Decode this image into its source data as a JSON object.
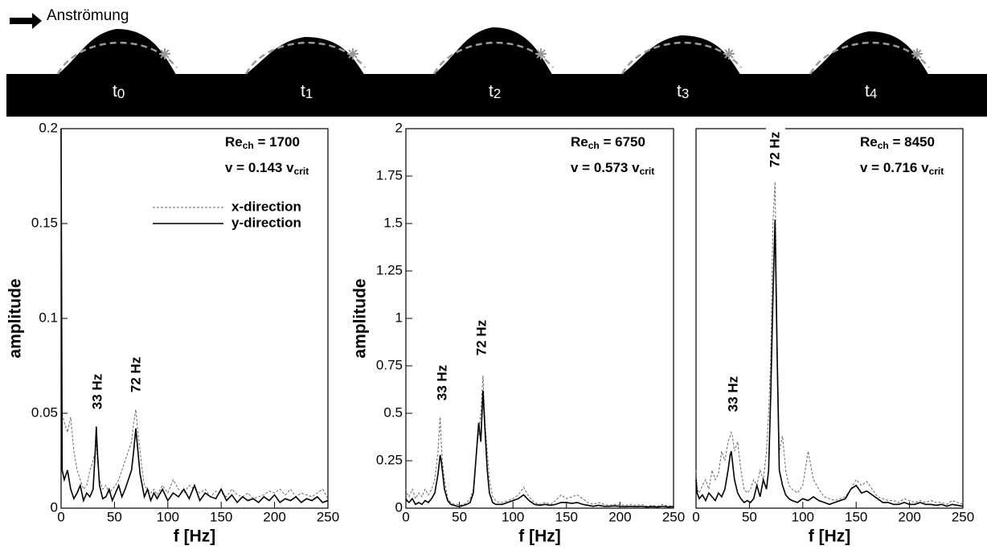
{
  "strip": {
    "flow_label": "Anströmung",
    "frames": [
      {
        "base": "t",
        "sub": "0"
      },
      {
        "base": "t",
        "sub": "1"
      },
      {
        "base": "t",
        "sub": "2"
      },
      {
        "base": "t",
        "sub": "3"
      },
      {
        "base": "t",
        "sub": "4"
      }
    ]
  },
  "chart_data": [
    {
      "type": "line",
      "xlabel": "f [Hz]",
      "ylabel": "amplitude",
      "re_label": {
        "base": "Re",
        "sub": "ch",
        "value": " = 1700"
      },
      "velocity_label": {
        "base": "v = 0.143 v",
        "sub": "crit"
      },
      "annotations": [
        "33 Hz",
        "72 Hz"
      ],
      "legend": true,
      "xlim": [
        0,
        250
      ],
      "xticks": [
        0,
        50,
        100,
        150,
        200,
        250
      ],
      "ylim": [
        0,
        0.2
      ],
      "yticks": [
        0,
        0.05,
        0.1,
        0.15,
        0.2
      ],
      "x": [
        0,
        1,
        3,
        6,
        9,
        12,
        15,
        18,
        21,
        24,
        27,
        30,
        32,
        33,
        34,
        36,
        39,
        42,
        45,
        48,
        51,
        54,
        57,
        60,
        63,
        66,
        68,
        70,
        72,
        74,
        76,
        78,
        81,
        84,
        87,
        90,
        95,
        100,
        105,
        110,
        115,
        120,
        125,
        130,
        135,
        140,
        145,
        150,
        155,
        160,
        165,
        170,
        175,
        180,
        185,
        190,
        195,
        200,
        205,
        210,
        215,
        220,
        225,
        230,
        235,
        240,
        245,
        250
      ],
      "series": [
        {
          "name": "x-direction",
          "color": "#666666",
          "dashed": true,
          "values": [
            0.2,
            0.05,
            0.045,
            0.04,
            0.048,
            0.03,
            0.02,
            0.015,
            0.01,
            0.012,
            0.02,
            0.025,
            0.03,
            0.035,
            0.025,
            0.015,
            0.01,
            0.012,
            0.008,
            0.01,
            0.012,
            0.015,
            0.02,
            0.025,
            0.03,
            0.035,
            0.045,
            0.052,
            0.04,
            0.03,
            0.02,
            0.012,
            0.01,
            0.008,
            0.01,
            0.007,
            0.012,
            0.008,
            0.015,
            0.01,
            0.008,
            0.012,
            0.01,
            0.008,
            0.01,
            0.006,
            0.009,
            0.008,
            0.006,
            0.01,
            0.007,
            0.006,
            0.008,
            0.005,
            0.006,
            0.007,
            0.009,
            0.008,
            0.01,
            0.007,
            0.01,
            0.006,
            0.008,
            0.007,
            0.006,
            0.008,
            0.01,
            0.005
          ]
        },
        {
          "name": "y-direction",
          "color": "#000000",
          "dashed": false,
          "values": [
            0.2,
            0.02,
            0.015,
            0.02,
            0.01,
            0.005,
            0.008,
            0.012,
            0.004,
            0.008,
            0.006,
            0.01,
            0.03,
            0.043,
            0.03,
            0.012,
            0.005,
            0.006,
            0.01,
            0.004,
            0.008,
            0.012,
            0.006,
            0.01,
            0.015,
            0.02,
            0.03,
            0.042,
            0.03,
            0.018,
            0.012,
            0.006,
            0.01,
            0.004,
            0.008,
            0.005,
            0.01,
            0.004,
            0.008,
            0.006,
            0.01,
            0.005,
            0.012,
            0.004,
            0.008,
            0.006,
            0.005,
            0.01,
            0.004,
            0.007,
            0.003,
            0.006,
            0.004,
            0.005,
            0.003,
            0.006,
            0.004,
            0.007,
            0.003,
            0.005,
            0.004,
            0.006,
            0.003,
            0.005,
            0.004,
            0.006,
            0.003,
            0.004
          ]
        }
      ]
    },
    {
      "type": "line",
      "xlabel": "f [Hz]",
      "ylabel": "amplitude",
      "re_label": {
        "base": "Re",
        "sub": "ch",
        "value": " = 6750"
      },
      "velocity_label": {
        "base": "v = 0.573 v",
        "sub": "crit"
      },
      "annotations": [
        "33 Hz",
        "72 Hz"
      ],
      "legend": false,
      "xlim": [
        0,
        250
      ],
      "xticks": [
        0,
        50,
        100,
        150,
        200,
        250
      ],
      "ylim": [
        0,
        2
      ],
      "yticks": [
        0,
        0.25,
        0.5,
        0.75,
        1,
        1.25,
        1.5,
        1.75,
        2
      ],
      "x": [
        0,
        1,
        3,
        6,
        9,
        12,
        15,
        18,
        21,
        24,
        27,
        30,
        32,
        33,
        34,
        36,
        39,
        42,
        45,
        48,
        51,
        54,
        57,
        60,
        63,
        66,
        68,
        70,
        72,
        74,
        76,
        78,
        81,
        84,
        87,
        90,
        95,
        100,
        105,
        110,
        115,
        120,
        125,
        130,
        135,
        140,
        145,
        150,
        155,
        160,
        165,
        170,
        175,
        180,
        185,
        190,
        195,
        200,
        205,
        210,
        215,
        220,
        225,
        230,
        235,
        240,
        245,
        250
      ],
      "series": [
        {
          "color": "#666666",
          "dashed": true,
          "values": [
            0.1,
            0.08,
            0.06,
            0.1,
            0.05,
            0.08,
            0.06,
            0.1,
            0.07,
            0.1,
            0.15,
            0.3,
            0.48,
            0.35,
            0.25,
            0.15,
            0.05,
            0.03,
            0.02,
            0.02,
            0.015,
            0.02,
            0.03,
            0.05,
            0.1,
            0.3,
            0.4,
            0.5,
            0.7,
            0.45,
            0.3,
            0.15,
            0.06,
            0.04,
            0.03,
            0.03,
            0.04,
            0.05,
            0.07,
            0.11,
            0.06,
            0.03,
            0.02,
            0.03,
            0.02,
            0.04,
            0.07,
            0.05,
            0.06,
            0.07,
            0.05,
            0.03,
            0.02,
            0.03,
            0.02,
            0.015,
            0.02,
            0.02,
            0.015,
            0.02,
            0.015,
            0.02,
            0.01,
            0.015,
            0.01,
            0.02,
            0.01,
            0.015
          ]
        },
        {
          "color": "#000000",
          "dashed": false,
          "values": [
            0.05,
            0.04,
            0.03,
            0.05,
            0.02,
            0.03,
            0.02,
            0.04,
            0.03,
            0.05,
            0.08,
            0.18,
            0.28,
            0.25,
            0.2,
            0.1,
            0.04,
            0.02,
            0.015,
            0.01,
            0.01,
            0.015,
            0.02,
            0.03,
            0.08,
            0.3,
            0.45,
            0.35,
            0.62,
            0.4,
            0.2,
            0.08,
            0.03,
            0.02,
            0.02,
            0.02,
            0.03,
            0.04,
            0.05,
            0.07,
            0.04,
            0.02,
            0.015,
            0.02,
            0.015,
            0.02,
            0.03,
            0.03,
            0.025,
            0.03,
            0.02,
            0.015,
            0.01,
            0.015,
            0.01,
            0.01,
            0.012,
            0.01,
            0.008,
            0.01,
            0.008,
            0.01,
            0.006,
            0.008,
            0.006,
            0.01,
            0.006,
            0.008
          ]
        }
      ]
    },
    {
      "type": "line",
      "xlabel": "f [Hz]",
      "re_label": {
        "base": "Re",
        "sub": "ch",
        "value": " = 8450"
      },
      "velocity_label": {
        "base": "v = 0.716 v",
        "sub": "crit"
      },
      "annotations": [
        "33 Hz",
        "72 Hz"
      ],
      "legend": false,
      "xlim": [
        0,
        250
      ],
      "xticks": [
        0,
        50,
        100,
        150,
        200,
        250
      ],
      "ylim": [
        0,
        2
      ],
      "x": [
        0,
        1,
        3,
        6,
        9,
        12,
        15,
        18,
        21,
        24,
        27,
        30,
        32,
        33,
        34,
        36,
        39,
        42,
        45,
        48,
        51,
        54,
        57,
        60,
        63,
        66,
        68,
        70,
        72,
        74,
        76,
        78,
        81,
        84,
        87,
        90,
        95,
        100,
        105,
        110,
        115,
        120,
        125,
        130,
        135,
        140,
        145,
        150,
        155,
        160,
        165,
        170,
        175,
        180,
        185,
        190,
        195,
        200,
        205,
        210,
        215,
        220,
        225,
        230,
        235,
        240,
        245,
        250
      ],
      "series": [
        {
          "color": "#666666",
          "dashed": true,
          "values": [
            0.2,
            0.1,
            0.08,
            0.12,
            0.15,
            0.1,
            0.2,
            0.15,
            0.18,
            0.3,
            0.25,
            0.35,
            0.38,
            0.4,
            0.38,
            0.3,
            0.35,
            0.2,
            0.1,
            0.08,
            0.1,
            0.15,
            0.12,
            0.2,
            0.15,
            0.3,
            0.5,
            0.8,
            1.5,
            1.72,
            0.9,
            0.3,
            0.38,
            0.2,
            0.12,
            0.1,
            0.08,
            0.12,
            0.3,
            0.15,
            0.1,
            0.06,
            0.05,
            0.04,
            0.05,
            0.06,
            0.1,
            0.15,
            0.12,
            0.14,
            0.1,
            0.06,
            0.05,
            0.04,
            0.04,
            0.03,
            0.05,
            0.04,
            0.03,
            0.04,
            0.03,
            0.04,
            0.03,
            0.03,
            0.02,
            0.04,
            0.03,
            0.02
          ]
        },
        {
          "color": "#000000",
          "dashed": false,
          "values": [
            0.15,
            0.08,
            0.05,
            0.07,
            0.04,
            0.08,
            0.06,
            0.04,
            0.08,
            0.06,
            0.1,
            0.2,
            0.28,
            0.3,
            0.25,
            0.15,
            0.08,
            0.05,
            0.03,
            0.04,
            0.03,
            0.05,
            0.12,
            0.06,
            0.15,
            0.1,
            0.2,
            0.6,
            1.1,
            1.52,
            0.8,
            0.2,
            0.12,
            0.07,
            0.05,
            0.04,
            0.03,
            0.05,
            0.04,
            0.06,
            0.04,
            0.03,
            0.02,
            0.03,
            0.04,
            0.05,
            0.1,
            0.12,
            0.08,
            0.09,
            0.07,
            0.05,
            0.03,
            0.03,
            0.02,
            0.02,
            0.03,
            0.02,
            0.02,
            0.03,
            0.02,
            0.02,
            0.015,
            0.02,
            0.01,
            0.02,
            0.015,
            0.01
          ]
        }
      ]
    }
  ]
}
